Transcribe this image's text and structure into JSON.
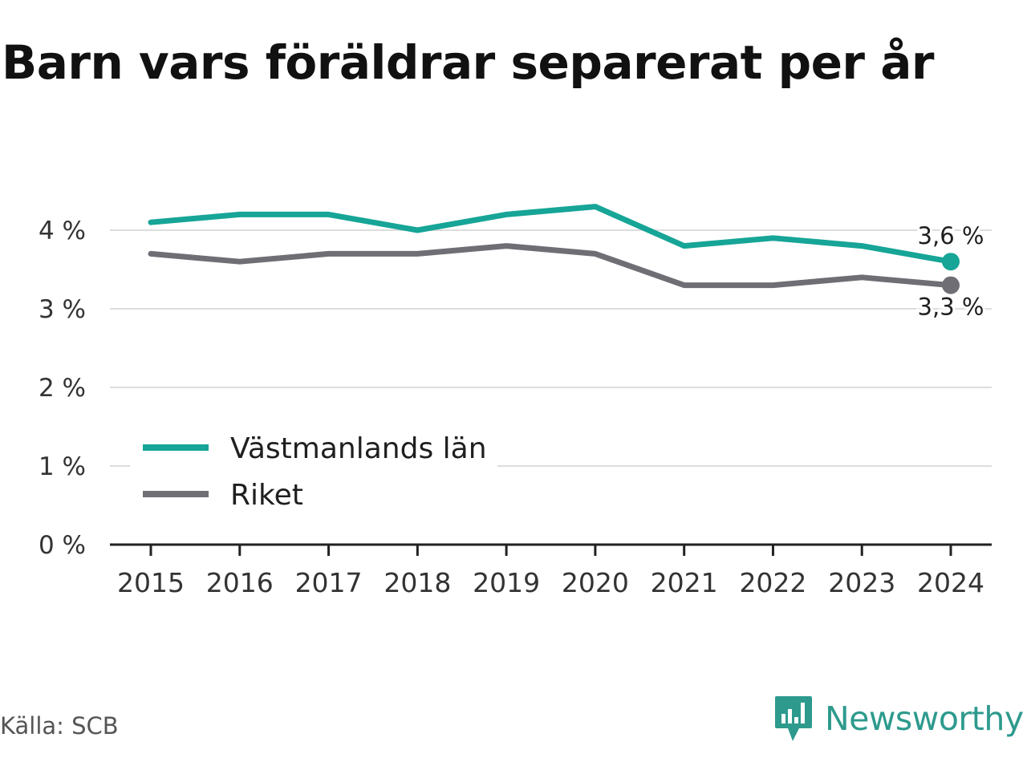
{
  "chart_data": {
    "type": "line",
    "title": "Barn vars föräldrar separerat per år",
    "x": [
      "2015",
      "2016",
      "2017",
      "2018",
      "2019",
      "2020",
      "2021",
      "2022",
      "2023",
      "2024"
    ],
    "series": [
      {
        "name": "Västmanlands län",
        "values": [
          4.1,
          4.2,
          4.2,
          4.0,
          4.2,
          4.3,
          3.8,
          3.9,
          3.8,
          3.6
        ],
        "color": "#16a597",
        "end_label": "3,6 %"
      },
      {
        "name": "Riket",
        "values": [
          3.7,
          3.6,
          3.7,
          3.7,
          3.8,
          3.7,
          3.3,
          3.3,
          3.4,
          3.3
        ],
        "color": "#6f6e75",
        "end_label": "3,3 %"
      }
    ],
    "ylim": [
      0,
      4.5
    ],
    "yticks": [
      0,
      1,
      2,
      3,
      4
    ],
    "ytick_labels": [
      "0 %",
      "1 %",
      "2 %",
      "3 %",
      "4 %"
    ],
    "grid": true,
    "legend": "bottom-left"
  },
  "footer": {
    "source": "Källa: SCB",
    "brand": "Newsworthy"
  },
  "colors": {
    "brand": "#2d9a8d",
    "grid": "#dddddd",
    "axis": "#222222"
  },
  "icons": {
    "brand_logo": "bar-chart-speech-bubble-icon"
  }
}
